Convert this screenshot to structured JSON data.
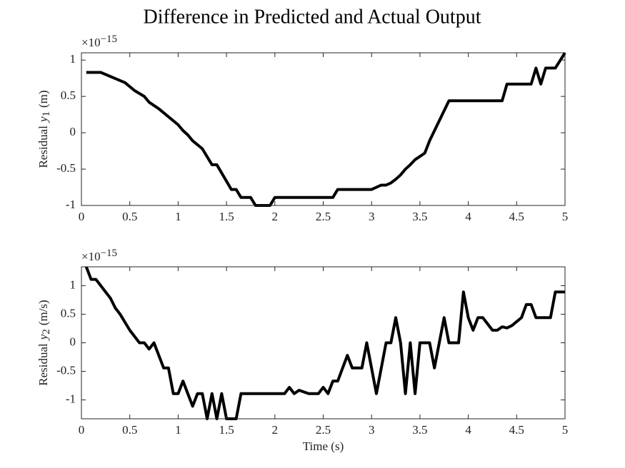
{
  "title": "Difference in Predicted and Actual Output",
  "chart_data": [
    {
      "type": "line",
      "exponent_label": {
        "base": "×10",
        "exponent": "−15"
      },
      "ylabel": {
        "prefix": "Residual",
        "symbol": "y",
        "subscript": "1",
        "unit": "(m)"
      },
      "xlim": [
        0,
        5
      ],
      "xticks": [
        0,
        0.5,
        1,
        1.5,
        2,
        2.5,
        3,
        3.5,
        4,
        4.5,
        5
      ],
      "ylim": [
        -1,
        1.1
      ],
      "yticks": [
        -1,
        -0.5,
        0,
        0.5,
        1
      ],
      "series": [
        {
          "color": "#000000",
          "x": [
            0.05,
            0.2,
            0.45,
            0.55,
            0.65,
            0.7,
            0.8,
            0.9,
            1.0,
            1.05,
            1.1,
            1.15,
            1.25,
            1.35,
            1.4,
            1.55,
            1.6,
            1.65,
            1.75,
            1.8,
            1.95,
            2.0,
            2.6,
            2.65,
            3.0,
            3.1,
            3.15,
            3.2,
            3.25,
            3.3,
            3.35,
            3.4,
            3.45,
            3.55,
            3.6,
            3.8,
            4.35,
            4.4,
            4.65,
            4.7,
            4.75,
            4.8,
            4.9,
            5.0
          ],
          "values": [
            0.83,
            0.83,
            0.69,
            0.58,
            0.5,
            0.42,
            0.33,
            0.22,
            0.11,
            0.03,
            -0.03,
            -0.11,
            -0.22,
            -0.44,
            -0.44,
            -0.78,
            -0.78,
            -0.89,
            -0.89,
            -1,
            -1,
            -0.89,
            -0.89,
            -0.78,
            -0.78,
            -0.72,
            -0.72,
            -0.69,
            -0.64,
            -0.58,
            -0.5,
            -0.44,
            -0.37,
            -0.28,
            -0.11,
            0.44,
            0.44,
            0.67,
            0.67,
            0.89,
            0.67,
            0.89,
            0.89,
            1.1
          ]
        }
      ]
    },
    {
      "type": "line",
      "exponent_label": {
        "base": "×10",
        "exponent": "−15"
      },
      "ylabel": {
        "prefix": "Residual",
        "symbol": "y",
        "subscript": "2",
        "unit": "(m/s)"
      },
      "xlabel": "Time (s)",
      "xlim": [
        0,
        5
      ],
      "xticks": [
        0,
        0.5,
        1,
        1.5,
        2,
        2.5,
        3,
        3.5,
        4,
        4.5,
        5
      ],
      "ylim": [
        -1.33,
        1.33
      ],
      "yticks": [
        -1,
        -0.5,
        0,
        0.5,
        1
      ],
      "series": [
        {
          "color": "#000000",
          "x": [
            0.05,
            0.1,
            0.15,
            0.3,
            0.35,
            0.4,
            0.5,
            0.6,
            0.65,
            0.7,
            0.75,
            0.85,
            0.9,
            0.95,
            1.0,
            1.05,
            1.15,
            1.2,
            1.25,
            1.3,
            1.35,
            1.4,
            1.45,
            1.5,
            1.6,
            1.65,
            2.1,
            2.15,
            2.2,
            2.25,
            2.35,
            2.45,
            2.5,
            2.55,
            2.6,
            2.65,
            2.75,
            2.8,
            2.9,
            2.95,
            3.05,
            3.15,
            3.2,
            3.25,
            3.3,
            3.35,
            3.4,
            3.45,
            3.5,
            3.6,
            3.65,
            3.75,
            3.8,
            3.9,
            3.95,
            4.0,
            4.05,
            4.1,
            4.15,
            4.25,
            4.3,
            4.35,
            4.4,
            4.45,
            4.55,
            4.6,
            4.65,
            4.7,
            4.85,
            4.9,
            5.0
          ],
          "values": [
            1.33,
            1.11,
            1.11,
            0.78,
            0.61,
            0.5,
            0.22,
            0,
            0,
            -0.11,
            0,
            -0.44,
            -0.44,
            -0.89,
            -0.89,
            -0.67,
            -1.11,
            -0.89,
            -0.89,
            -1.33,
            -0.89,
            -1.33,
            -0.89,
            -1.33,
            -1.33,
            -0.89,
            -0.89,
            -0.78,
            -0.89,
            -0.83,
            -0.89,
            -0.89,
            -0.78,
            -0.89,
            -0.67,
            -0.67,
            -0.22,
            -0.44,
            -0.44,
            0,
            -0.89,
            0,
            0,
            0.44,
            0,
            -0.89,
            0,
            -0.89,
            0,
            0,
            -0.44,
            0.44,
            0,
            0,
            0.89,
            0.44,
            0.22,
            0.44,
            0.44,
            0.22,
            0.22,
            0.28,
            0.26,
            0.3,
            0.44,
            0.67,
            0.67,
            0.44,
            0.44,
            0.89,
            0.89
          ]
        }
      ]
    }
  ]
}
